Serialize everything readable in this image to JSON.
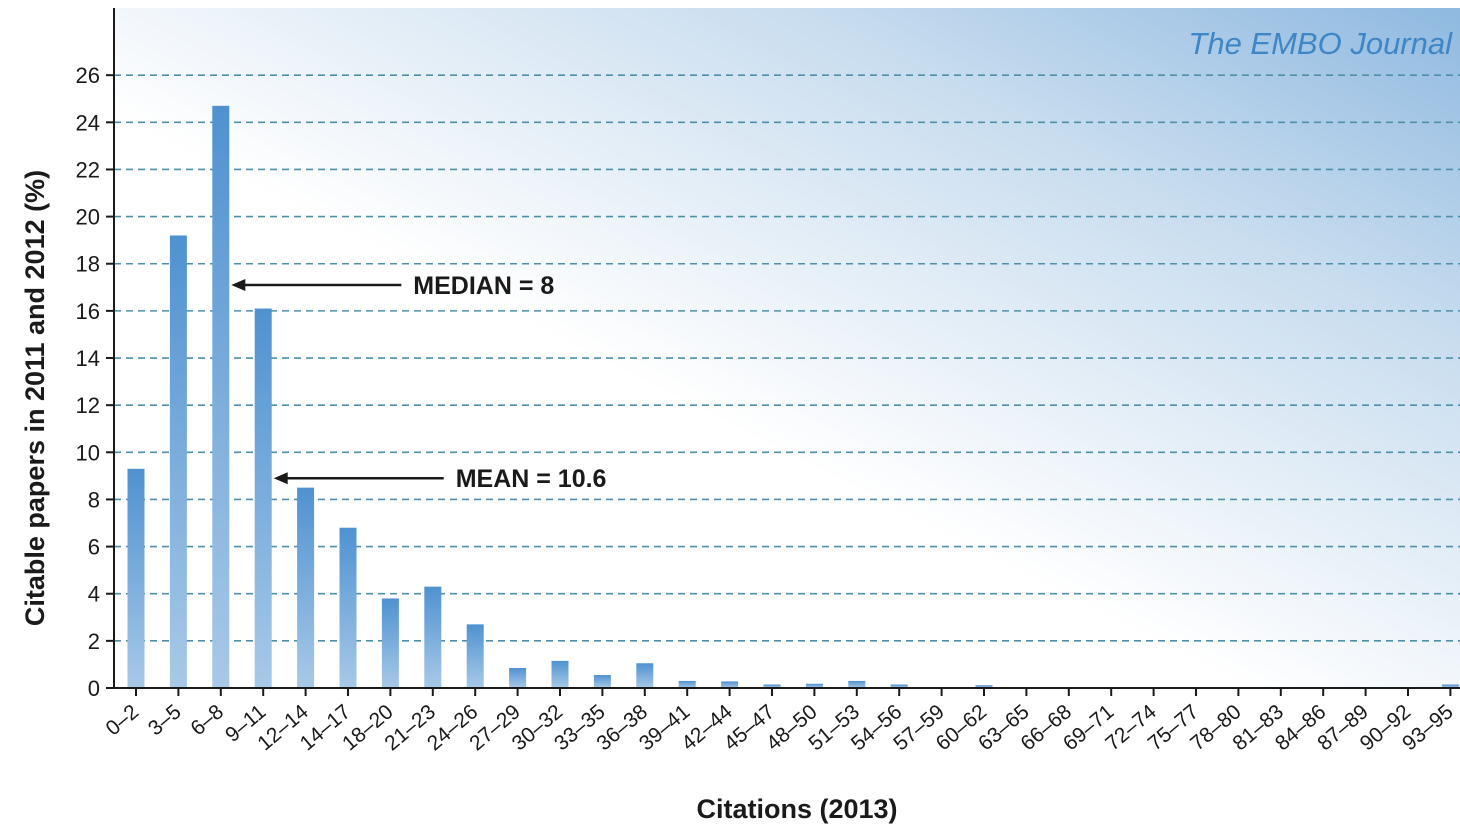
{
  "chart_data": {
    "type": "bar",
    "title": "",
    "watermark": "The EMBO Journal",
    "xlabel": "Citations (2013)",
    "ylabel": "Citable papers in 2011 and 2012  (%)",
    "ylim": [
      0,
      28
    ],
    "yticks": [
      0,
      2,
      4,
      6,
      8,
      10,
      12,
      14,
      16,
      18,
      20,
      22,
      24,
      26
    ],
    "grid": "horizontal dashed",
    "categories": [
      "0–2",
      "3–5",
      "6–8",
      "9–11",
      "12–14",
      "14–17",
      "18–20",
      "21–23",
      "24–26",
      "27–29",
      "30–32",
      "33–35",
      "36–38",
      "39–41",
      "42–44",
      "45–47",
      "48–50",
      "51–53",
      "54–56",
      "57–59",
      "60–62",
      "63–65",
      "66–68",
      "69–71",
      "72–74",
      "75–77",
      "78–80",
      "81–83",
      "84–86",
      "87–89",
      "90–92",
      "93–95"
    ],
    "values": [
      9.3,
      19.2,
      24.7,
      16.1,
      8.5,
      6.8,
      3.8,
      4.3,
      2.7,
      0.85,
      1.15,
      0.55,
      1.05,
      0.3,
      0.28,
      0.15,
      0.18,
      0.3,
      0.15,
      0,
      0.12,
      0,
      0,
      0,
      0,
      0,
      0,
      0,
      0,
      0,
      0,
      0.15
    ],
    "bar_color": "#5b9bd5",
    "annotations": [
      {
        "label": "MEDIAN = 8",
        "category_index": 2,
        "y": 17.1
      },
      {
        "label": "MEAN = 10.6",
        "category_index": 3,
        "y": 8.9
      }
    ]
  }
}
